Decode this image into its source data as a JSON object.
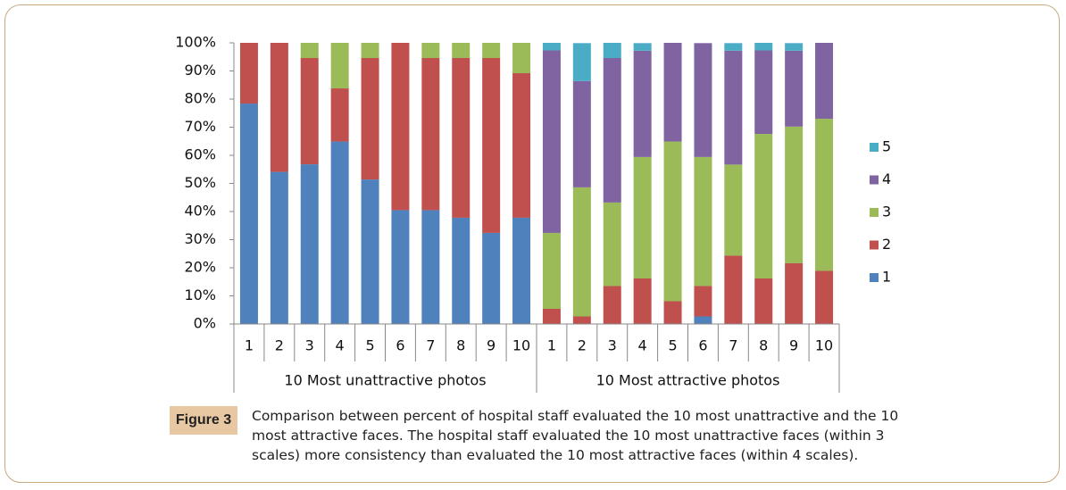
{
  "chart_data": {
    "type": "stacked-bar",
    "categories": [
      "1",
      "2",
      "3",
      "4",
      "5",
      "6",
      "7",
      "8",
      "9",
      "10",
      "1",
      "2",
      "3",
      "4",
      "5",
      "6",
      "7",
      "8",
      "9",
      "10"
    ],
    "groups": [
      "10 Most unattractive photos",
      "10 Most attractive photos"
    ],
    "series": [
      {
        "name": "1",
        "color": "#4f81bd",
        "values": [
          78.4,
          54.1,
          56.8,
          64.9,
          51.4,
          40.5,
          40.5,
          37.8,
          32.4,
          37.8,
          0,
          0,
          0,
          0,
          0,
          2.7,
          0,
          0,
          0,
          0
        ]
      },
      {
        "name": "2",
        "color": "#c0504d",
        "values": [
          21.6,
          45.9,
          37.8,
          18.9,
          43.2,
          59.5,
          54.1,
          56.8,
          62.2,
          51.4,
          5.4,
          2.7,
          13.5,
          16.2,
          8.1,
          10.8,
          24.3,
          16.2,
          21.6,
          18.9
        ]
      },
      {
        "name": "3",
        "color": "#9bbb59",
        "values": [
          0,
          0,
          5.4,
          16.2,
          5.4,
          0,
          5.4,
          5.4,
          5.4,
          10.8,
          27.0,
          45.9,
          29.7,
          43.2,
          56.8,
          45.9,
          32.4,
          51.4,
          48.6,
          54.1
        ]
      },
      {
        "name": "4",
        "color": "#8064a2",
        "values": [
          0,
          0,
          0,
          0,
          0,
          0,
          0,
          0,
          0,
          0,
          64.9,
          37.8,
          51.4,
          37.8,
          35.1,
          40.5,
          40.5,
          29.7,
          27.0,
          27.0
        ]
      },
      {
        "name": "5",
        "color": "#4bacc6",
        "values": [
          0,
          0,
          0,
          0,
          0,
          0,
          0,
          0,
          0,
          0,
          2.7,
          13.5,
          5.4,
          2.7,
          0,
          0,
          2.7,
          2.7,
          2.7,
          0
        ]
      }
    ],
    "ylim": [
      0,
      100
    ],
    "yticks": [
      {
        "value": 0,
        "label": "0%"
      },
      {
        "value": 10,
        "label": "10%"
      },
      {
        "value": 20,
        "label": "20%"
      },
      {
        "value": 30,
        "label": "30%"
      },
      {
        "value": 40,
        "label": "40%"
      },
      {
        "value": 50,
        "label": "50%"
      },
      {
        "value": 60,
        "label": "60%"
      },
      {
        "value": 70,
        "label": "70%"
      },
      {
        "value": 80,
        "label": "80%"
      },
      {
        "value": 90,
        "label": "90%"
      },
      {
        "value": 100,
        "label": "100%"
      }
    ],
    "legend": "right"
  },
  "caption": {
    "label": "Figure 3",
    "text": "Comparison between percent of hospital staff evaluated the 10 most unattractive and the 10 most attractive faces. The hospital staff evaluated the 10 most unattractive faces (within 3 scales) more consistency than evaluated the 10 most attractive faces (within 4 scales)."
  }
}
